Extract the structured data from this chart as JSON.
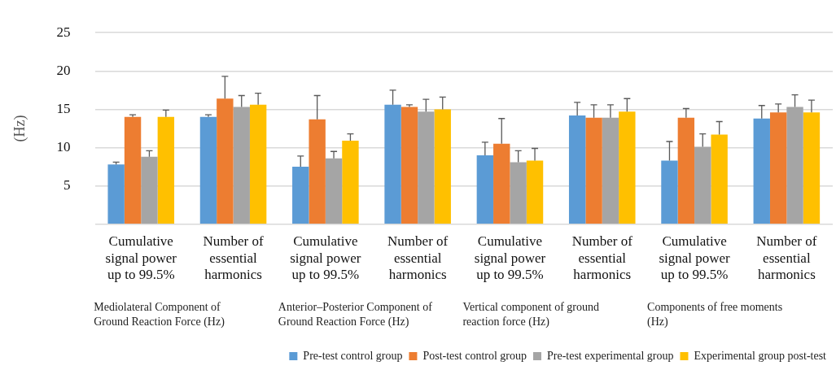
{
  "chart_data": {
    "type": "bar",
    "ylabel": "(Hz)",
    "categories": [
      "Cumulative signal power up to 99.5%",
      "Number of essential harmonics",
      "Cumulative signal power up to 99.5%",
      "Number of essential harmonics",
      "Cumulative signal power up to 99.5%",
      "Number of essential harmonics",
      "Cumulative signal power up to 99.5%",
      "Number of essential harmonics"
    ],
    "series": [
      {
        "name": "Pre-test control group",
        "color": "#5b9bd5",
        "values": [
          7.8,
          14.0,
          7.5,
          15.6,
          9.0,
          14.2,
          8.3,
          13.8
        ],
        "errors": [
          [
            7.8,
            8.1
          ],
          [
            14.0,
            14.3
          ],
          [
            7.5,
            8.9
          ],
          [
            15.6,
            17.5
          ],
          [
            9.0,
            10.7
          ],
          [
            14.2,
            15.9
          ],
          [
            8.3,
            10.8
          ],
          [
            13.8,
            15.5
          ]
        ]
      },
      {
        "name": "Post-test control group",
        "color": "#ed7d31",
        "values": [
          14.0,
          16.4,
          13.7,
          15.3,
          10.5,
          13.9,
          13.9,
          14.6
        ],
        "errors": [
          [
            14.0,
            14.3
          ],
          [
            16.4,
            19.3
          ],
          [
            13.7,
            16.8
          ],
          [
            15.3,
            15.6
          ],
          [
            10.5,
            13.8
          ],
          [
            13.9,
            15.6
          ],
          [
            13.9,
            15.1
          ],
          [
            14.6,
            15.7
          ]
        ]
      },
      {
        "name": "Pre-test experimental group",
        "color": "#a5a5a5",
        "values": [
          8.8,
          15.3,
          8.6,
          14.7,
          8.1,
          13.9,
          10.1,
          15.3
        ],
        "errors": [
          [
            8.8,
            9.6
          ],
          [
            15.3,
            16.8
          ],
          [
            8.6,
            9.5
          ],
          [
            14.7,
            16.3
          ],
          [
            8.1,
            9.6
          ],
          [
            13.9,
            15.6
          ],
          [
            10.1,
            11.8
          ],
          [
            15.3,
            16.9
          ]
        ]
      },
      {
        "name": "Experimental group post-test",
        "color": "#ffc000",
        "values": [
          14.0,
          15.6,
          10.9,
          15.0,
          8.3,
          14.7,
          11.7,
          14.6
        ],
        "errors": [
          [
            14.0,
            14.9
          ],
          [
            15.6,
            17.1
          ],
          [
            10.9,
            11.8
          ],
          [
            15.0,
            16.6
          ],
          [
            8.3,
            9.9
          ],
          [
            14.7,
            16.4
          ],
          [
            11.7,
            13.4
          ],
          [
            14.6,
            16.2
          ]
        ]
      }
    ],
    "ylim": [
      0,
      25
    ],
    "yticks": [
      5,
      10,
      15,
      20,
      25
    ],
    "grid": "y",
    "legend": "bottom",
    "annotations": [
      "Mediolateral Component of Ground Reaction Force (Hz)",
      "Anterior–Posterior Component of Ground Reaction Force (Hz)",
      "Vertical component of ground reaction force (Hz)",
      "Components of free moments (Hz)"
    ]
  }
}
